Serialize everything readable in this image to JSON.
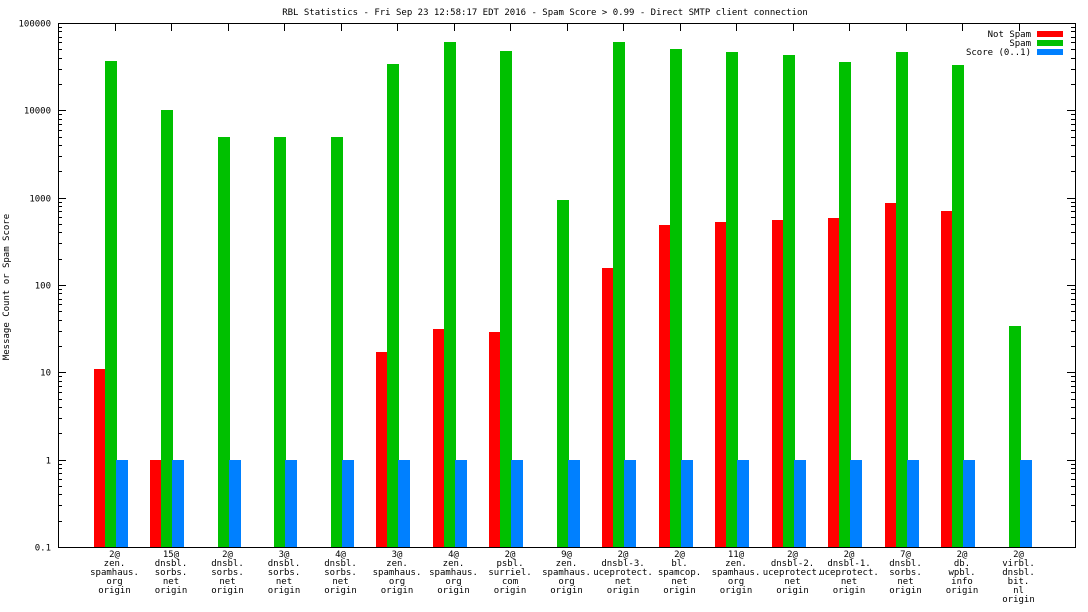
{
  "chart_data": {
    "type": "bar",
    "title": "RBL Statistics - Fri Sep 23 12:58:17 EDT 2016 - Spam Score > 0.99 - Direct SMTP client connection",
    "ylabel": "Message Count or Spam Score",
    "xlabel": "",
    "yscale": "log",
    "ylim": [
      0.1,
      100000
    ],
    "yticks": [
      {
        "value": 0.1,
        "label": "0.1"
      },
      {
        "value": 1,
        "label": "1"
      },
      {
        "value": 10,
        "label": "10"
      },
      {
        "value": 100,
        "label": "100"
      },
      {
        "value": 1000,
        "label": "1000"
      },
      {
        "value": 10000,
        "label": "10000"
      },
      {
        "value": 100000,
        "label": "100000"
      }
    ],
    "legend_position": "top-right",
    "categories": [
      [
        "2@",
        "zen.",
        "spamhaus.",
        "org",
        "origin"
      ],
      [
        "15@",
        "dnsbl.",
        "sorbs.",
        "net",
        "origin"
      ],
      [
        "2@",
        "dnsbl.",
        "sorbs.",
        "net",
        "origin"
      ],
      [
        "3@",
        "dnsbl.",
        "sorbs.",
        "net",
        "origin"
      ],
      [
        "4@",
        "dnsbl.",
        "sorbs.",
        "net",
        "origin"
      ],
      [
        "3@",
        "zen.",
        "spamhaus.",
        "org",
        "origin"
      ],
      [
        "4@",
        "zen.",
        "spamhaus.",
        "org",
        "origin"
      ],
      [
        "2@",
        "psbl.",
        "surriel.",
        "com",
        "origin"
      ],
      [
        "9@",
        "zen.",
        "spamhaus.",
        "org",
        "origin"
      ],
      [
        "2@",
        "dnsbl-3.",
        "uceprotect.",
        "net",
        "origin"
      ],
      [
        "2@",
        "bl.",
        "spamcop.",
        "net",
        "origin"
      ],
      [
        "11@",
        "zen.",
        "spamhaus.",
        "org",
        "origin"
      ],
      [
        "2@",
        "dnsbl-2.",
        "uceprotect.",
        "net",
        "origin"
      ],
      [
        "2@",
        "dnsbl-1.",
        "uceprotect.",
        "net",
        "origin"
      ],
      [
        "7@",
        "dnsbl.",
        "sorbs.",
        "net",
        "origin"
      ],
      [
        "2@",
        "db.",
        "wpbl.",
        "info",
        "origin"
      ],
      [
        "2@",
        "virbl.",
        "dnsbl.",
        "bit.",
        "nl",
        "origin"
      ]
    ],
    "series": [
      {
        "name": "Not Spam",
        "color": "#ff0000",
        "values": [
          11,
          1,
          null,
          null,
          null,
          17,
          31,
          29,
          null,
          155,
          490,
          520,
          550,
          590,
          870,
          700,
          null
        ]
      },
      {
        "name": "Spam",
        "color": "#00c000",
        "values": [
          37000,
          10200,
          4900,
          4900,
          4900,
          34000,
          61000,
          48000,
          950,
          61000,
          51000,
          47000,
          43000,
          36000,
          47000,
          33000,
          34
        ]
      },
      {
        "name": "Score (0..1)",
        "color": "#0080ff",
        "values": [
          1,
          1,
          1,
          1,
          1,
          1,
          1,
          1,
          1,
          1,
          1,
          1,
          1,
          1,
          1,
          1,
          1
        ]
      }
    ]
  }
}
